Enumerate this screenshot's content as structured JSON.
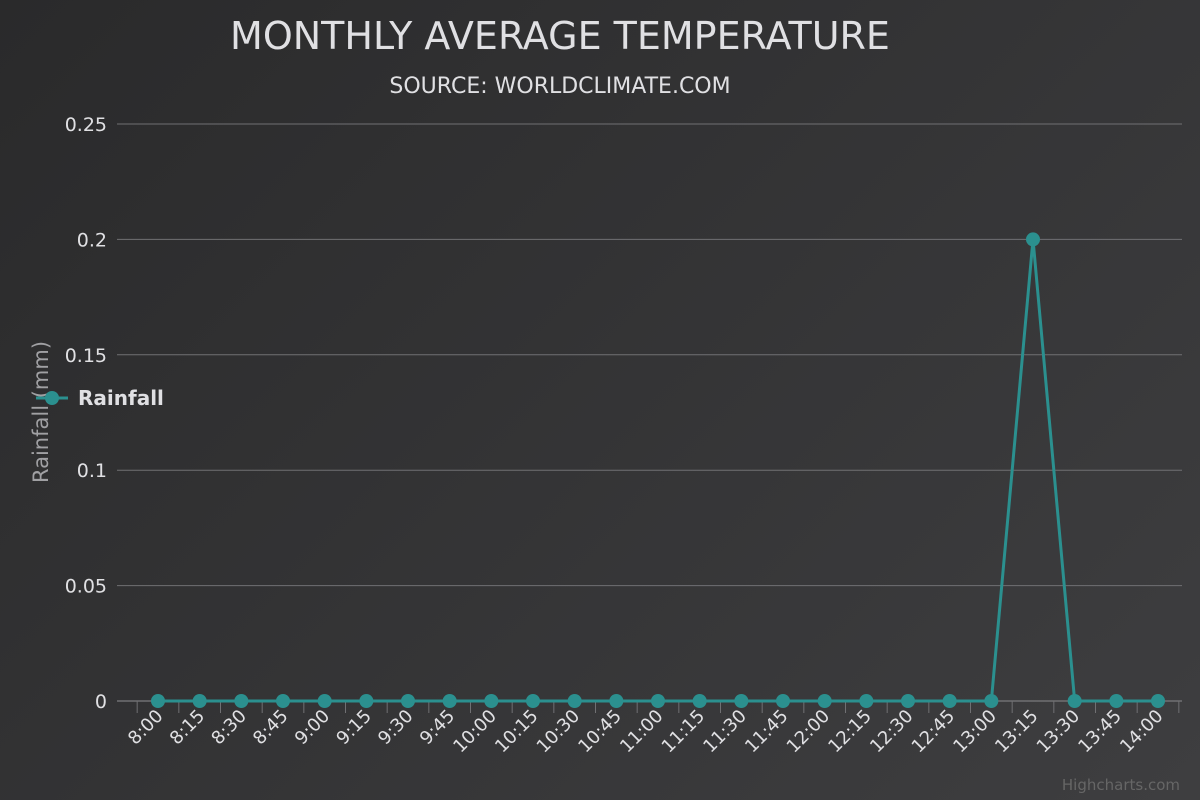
{
  "chart_data": {
    "type": "line",
    "title": "MONTHLY AVERAGE TEMPERATURE",
    "subtitle": "SOURCE: WORLDCLIMATE.COM",
    "ylabel": "Rainfall (mm)",
    "xlabel": "",
    "ylim": [
      0,
      0.25
    ],
    "yticks": [
      "0",
      "0.05",
      "0.1",
      "0.15",
      "0.2",
      "0.25"
    ],
    "categories": [
      "8:00",
      "8:15",
      "8:30",
      "8:45",
      "9:00",
      "9:15",
      "9:30",
      "9:45",
      "10:00",
      "10:15",
      "10:30",
      "10:45",
      "11:00",
      "11:15",
      "11:30",
      "11:45",
      "12:00",
      "12:15",
      "12:30",
      "12:45",
      "13:00",
      "13:15",
      "13:30",
      "13:45",
      "14:00"
    ],
    "series": [
      {
        "name": "Rainfall",
        "color": "#2b908f",
        "values": [
          0,
          0,
          0,
          0,
          0,
          0,
          0,
          0,
          0,
          0,
          0,
          0,
          0,
          0,
          0,
          0,
          0,
          0,
          0,
          0,
          0,
          0.2,
          0,
          0,
          0
        ]
      }
    ],
    "grid": true,
    "legend": "left-middle"
  },
  "credits": "Highcharts.com"
}
